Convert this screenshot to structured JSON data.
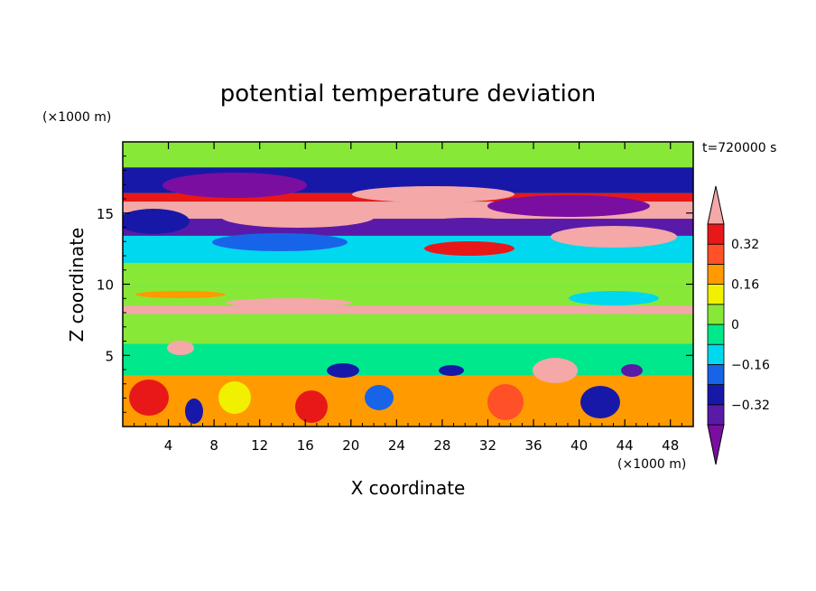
{
  "chart_data": {
    "type": "heatmap",
    "title": "potential temperature deviation",
    "xlabel": "X coordinate",
    "ylabel": "Z coordinate",
    "x_unit": "(×1000 m)",
    "y_unit": "(×1000 m)",
    "time_label": "t=720000 s",
    "xlim": [
      0,
      50
    ],
    "ylim": [
      0,
      20
    ],
    "x_ticks": [
      4,
      8,
      12,
      16,
      20,
      24,
      28,
      32,
      36,
      40,
      44,
      48
    ],
    "y_ticks": [
      5,
      10,
      15
    ],
    "colorbar": {
      "levels": [
        -0.4,
        -0.32,
        -0.24,
        -0.16,
        -0.08,
        0,
        0.08,
        0.16,
        0.24,
        0.32,
        0.4
      ],
      "labels": [
        "0.32",
        "0.16",
        "0",
        "−0.16",
        "−0.32"
      ],
      "label_values": [
        0.32,
        0.16,
        0,
        -0.16,
        -0.32
      ],
      "colors_bottom_to_top": [
        "#7a0ea0",
        "#5a1aa8",
        "#1818a8",
        "#1864e8",
        "#00d8f0",
        "#00e88c",
        "#88e838",
        "#f0f000",
        "#ff9a00",
        "#ff5028",
        "#e81818",
        "#f4a8a8"
      ]
    },
    "field_bands": [
      {
        "z_range": [
          18.2,
          20.0
        ],
        "value": 0.04
      },
      {
        "z_range": [
          16.4,
          18.2
        ],
        "value": -0.3
      },
      {
        "z_range": [
          15.8,
          16.4
        ],
        "value": 0.36
      },
      {
        "z_range": [
          14.6,
          15.8
        ],
        "value": 0.42
      },
      {
        "z_range": [
          13.4,
          14.6
        ],
        "value": -0.36
      },
      {
        "z_range": [
          11.5,
          13.4
        ],
        "value": -0.12
      },
      {
        "z_range": [
          9.8,
          11.5
        ],
        "value": 0.02
      },
      {
        "z_range": [
          8.5,
          9.8
        ],
        "value": 0.05
      },
      {
        "z_range": [
          7.9,
          8.5
        ],
        "value": 0.4
      },
      {
        "z_range": [
          5.8,
          7.9
        ],
        "value": 0.02
      },
      {
        "z_range": [
          3.6,
          5.8
        ],
        "value": -0.06
      },
      {
        "z_range": [
          0.0,
          3.6
        ],
        "value": 0.2
      }
    ]
  }
}
